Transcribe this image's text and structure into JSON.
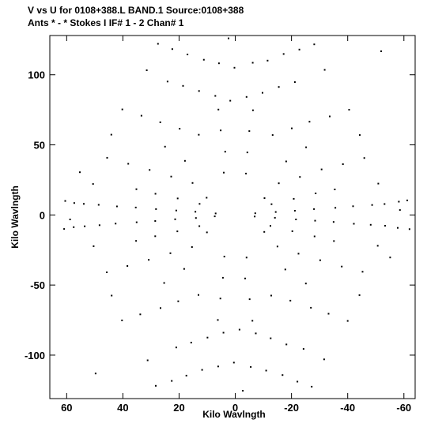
{
  "header": {
    "line1": "V vs U for 0108+388.L BAND.1   Source:0108+388",
    "line2": "Ants * - *     Stokes I   IF# 1 - 2   Chan# 1"
  },
  "chart_data": {
    "type": "scatter",
    "title": "V vs U for 0108+388.L BAND.1   Source:0108+388",
    "subtitle": "Ants * - *     Stokes I   IF# 1 - 2   Chan# 1",
    "xlabel": "Kilo Wavlngth",
    "ylabel": "Kilo Wavlngth",
    "xlim": [
      66,
      -64
    ],
    "ylim": [
      -131,
      128
    ],
    "x_reversed": true,
    "x_ticks": [
      60,
      40,
      20,
      0,
      -20,
      -40,
      -60
    ],
    "y_ticks": [
      100,
      50,
      0,
      -50,
      -100
    ],
    "x_tick_labels": [
      "60",
      "40",
      "20",
      "0",
      "-20",
      "-40",
      "-60"
    ],
    "y_tick_labels": [
      "100",
      "50",
      "0",
      "-50",
      "-100"
    ],
    "grid": false,
    "legend": "none",
    "marker_color": "#000000",
    "points": [
      [
        60.5,
        10
      ],
      [
        57.3,
        8.5
      ],
      [
        53.9,
        7.9
      ],
      [
        48.6,
        7.2
      ],
      [
        42.1,
        6.1
      ],
      [
        35.4,
        5.3
      ],
      [
        28.2,
        4.2
      ],
      [
        21.0,
        3.2
      ],
      [
        14.2,
        2.3
      ],
      [
        7.0,
        1.1
      ],
      [
        60.9,
        -10
      ],
      [
        57.5,
        -8.7
      ],
      [
        53.6,
        -8.1
      ],
      [
        48.3,
        -7.3
      ],
      [
        42.6,
        -6.2
      ],
      [
        35.1,
        -5.2
      ],
      [
        28.5,
        -4.3
      ],
      [
        21.4,
        -3.1
      ],
      [
        14.0,
        -2.2
      ],
      [
        7.3,
        -1.0
      ],
      [
        -61.2,
        10.4
      ],
      [
        -58.2,
        9.5
      ],
      [
        -53.1,
        7.8
      ],
      [
        -48.7,
        7.1
      ],
      [
        -41.9,
        6.2
      ],
      [
        -35.6,
        5.1
      ],
      [
        -28.0,
        4.2
      ],
      [
        -21.2,
        3.0
      ],
      [
        -14.4,
        2.1
      ],
      [
        -7.1,
        1.2
      ],
      [
        -62.0,
        -10.1
      ],
      [
        -57.8,
        -9.2
      ],
      [
        -53.3,
        -7.7
      ],
      [
        -48.2,
        -7.0
      ],
      [
        -42.2,
        -6.3
      ],
      [
        -35.0,
        -5.0
      ],
      [
        -28.4,
        -4.1
      ],
      [
        -21.6,
        -3.2
      ],
      [
        -14.1,
        -2.0
      ],
      [
        -6.9,
        -1.1
      ],
      [
        27.5,
        122.1
      ],
      [
        22.4,
        118.3
      ],
      [
        17.0,
        114.5
      ],
      [
        11.2,
        110.7
      ],
      [
        5.8,
        108.2
      ],
      [
        0.3,
        105.0
      ],
      [
        -6.2,
        108.6
      ],
      [
        -11.5,
        110.1
      ],
      [
        -17.2,
        114.8
      ],
      [
        -22.8,
        118.0
      ],
      [
        -28.1,
        121.7
      ],
      [
        -27.2,
        -122.5
      ],
      [
        -22.1,
        -118.9
      ],
      [
        -16.8,
        -114.2
      ],
      [
        -11.0,
        -111.0
      ],
      [
        -5.5,
        -108.4
      ],
      [
        0.5,
        -105.3
      ],
      [
        6.1,
        -108.1
      ],
      [
        11.8,
        -110.5
      ],
      [
        17.4,
        -114.6
      ],
      [
        22.6,
        -118.4
      ],
      [
        28.3,
        -121.9
      ],
      [
        24.1,
        95.2
      ],
      [
        18.6,
        92.1
      ],
      [
        12.9,
        88.4
      ],
      [
        7.1,
        84.9
      ],
      [
        1.8,
        81.5
      ],
      [
        -4.0,
        84.2
      ],
      [
        -9.7,
        87.1
      ],
      [
        -15.5,
        91.3
      ],
      [
        -21.2,
        94.8
      ],
      [
        -24.3,
        -95.6
      ],
      [
        -18.2,
        -92.4
      ],
      [
        -12.6,
        -88.0
      ],
      [
        -7.3,
        -84.5
      ],
      [
        -1.5,
        -81.8
      ],
      [
        4.2,
        -84.0
      ],
      [
        9.9,
        -87.5
      ],
      [
        15.7,
        -91.1
      ],
      [
        21.0,
        -94.5
      ],
      [
        40.2,
        75.3
      ],
      [
        33.4,
        70.8
      ],
      [
        26.7,
        66.1
      ],
      [
        19.8,
        61.5
      ],
      [
        13.0,
        57.2
      ],
      [
        -13.3,
        57.0
      ],
      [
        -20.1,
        61.8
      ],
      [
        -26.4,
        66.5
      ],
      [
        -33.6,
        70.3
      ],
      [
        -40.5,
        75.1
      ],
      [
        -40.0,
        -75.6
      ],
      [
        -33.2,
        -70.5
      ],
      [
        -26.9,
        -66.2
      ],
      [
        -19.6,
        -61.1
      ],
      [
        -12.8,
        -57.5
      ],
      [
        13.1,
        -57.1
      ],
      [
        20.3,
        -61.6
      ],
      [
        26.6,
        -66.4
      ],
      [
        33.8,
        -70.9
      ],
      [
        40.3,
        -75.2
      ],
      [
        45.6,
        40.8
      ],
      [
        38.1,
        36.5
      ],
      [
        30.5,
        32.1
      ],
      [
        22.8,
        27.4
      ],
      [
        15.2,
        22.8
      ],
      [
        -15.5,
        22.6
      ],
      [
        -23.0,
        27.1
      ],
      [
        -30.7,
        32.5
      ],
      [
        -38.3,
        36.2
      ],
      [
        -45.9,
        40.6
      ],
      [
        -45.3,
        -40.5
      ],
      [
        -37.9,
        -36.8
      ],
      [
        -30.2,
        -32.3
      ],
      [
        -22.5,
        -27.6
      ],
      [
        -15.0,
        -22.5
      ],
      [
        15.4,
        -22.9
      ],
      [
        23.1,
        -27.3
      ],
      [
        30.8,
        -32.0
      ],
      [
        38.4,
        -36.4
      ],
      [
        45.7,
        -40.9
      ],
      [
        35.2,
        18.4
      ],
      [
        28.4,
        15.1
      ],
      [
        20.5,
        11.8
      ],
      [
        12.7,
        7.9
      ],
      [
        -12.9,
        7.7
      ],
      [
        -20.8,
        11.5
      ],
      [
        -28.6,
        15.4
      ],
      [
        -35.4,
        18.2
      ],
      [
        -35.1,
        -18.6
      ],
      [
        -28.2,
        -15.3
      ],
      [
        -20.3,
        -11.6
      ],
      [
        -12.5,
        -7.8
      ],
      [
        12.8,
        -8.0
      ],
      [
        20.6,
        -11.7
      ],
      [
        28.5,
        -15.2
      ],
      [
        35.3,
        -18.5
      ],
      [
        4.1,
        30.2
      ],
      [
        -3.8,
        29.5
      ],
      [
        3.6,
        45.1
      ],
      [
        -4.3,
        44.6
      ],
      [
        5.2,
        60.3
      ],
      [
        -5.0,
        59.8
      ],
      [
        6.0,
        75.2
      ],
      [
        -6.3,
        74.7
      ],
      [
        -4.0,
        -30.4
      ],
      [
        3.9,
        -29.7
      ],
      [
        -3.5,
        -45.3
      ],
      [
        4.4,
        -44.8
      ],
      [
        -5.1,
        -60.1
      ],
      [
        5.3,
        -59.6
      ],
      [
        -6.1,
        -75.5
      ],
      [
        6.2,
        -74.9
      ],
      [
        25.0,
        48.7
      ],
      [
        -25.2,
        48.3
      ],
      [
        25.3,
        -48.5
      ],
      [
        -25.1,
        -48.9
      ],
      [
        50.6,
        22.1
      ],
      [
        -50.9,
        22.4
      ],
      [
        50.4,
        -22.3
      ],
      [
        -50.7,
        -22.0
      ],
      [
        10.2,
        12.3
      ],
      [
        -10.4,
        12.0
      ],
      [
        10.1,
        -12.4
      ],
      [
        -10.3,
        -12.1
      ],
      [
        17.9,
        38.6
      ],
      [
        -18.1,
        38.2
      ],
      [
        18.2,
        -38.5
      ],
      [
        -17.8,
        -38.9
      ],
      [
        31.5,
        103.2
      ],
      [
        -31.8,
        103.5
      ],
      [
        31.2,
        -103.7
      ],
      [
        -31.6,
        -103.0
      ],
      [
        44.1,
        57.3
      ],
      [
        -44.3,
        57.0
      ],
      [
        44.0,
        -57.5
      ],
      [
        -44.2,
        -57.2
      ],
      [
        49.7,
        -113.1
      ],
      [
        -51.9,
        116.8
      ],
      [
        2.4,
        126.0
      ],
      [
        -2.7,
        -125.4
      ],
      [
        55.3,
        30.5
      ],
      [
        -55.1,
        -30.3
      ],
      [
        -58.6,
        3.5
      ],
      [
        58.8,
        -3.2
      ]
    ]
  }
}
